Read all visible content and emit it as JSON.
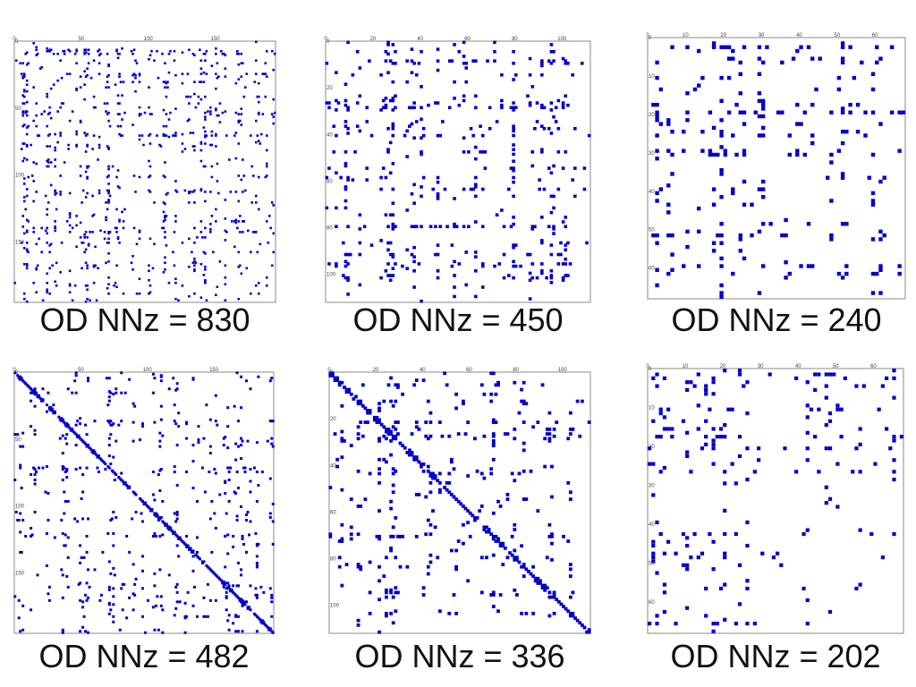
{
  "marker_color": "#0000c8",
  "frame_color": "#888888",
  "chart_data": [
    {
      "type": "scatter",
      "title": "OD NNz = 830",
      "xlim": [
        0,
        195
      ],
      "ylim": [
        0,
        195
      ],
      "x_ticks": [
        "0",
        "50",
        "100",
        "150"
      ],
      "y_ticks": [
        "0",
        "50",
        "100",
        "150"
      ],
      "x_tick_values": [
        0,
        50,
        100,
        150
      ],
      "y_tick_values": [
        0,
        50,
        100,
        150
      ],
      "nnz": 830,
      "diagonal": false,
      "marker_size": 2.6,
      "seed": 11
    },
    {
      "type": "scatter",
      "title": "OD NNz = 450",
      "xlim": [
        0,
        112
      ],
      "ylim": [
        0,
        112
      ],
      "x_ticks": [
        "0",
        "20",
        "40",
        "60",
        "80",
        "100"
      ],
      "y_ticks": [
        "0",
        "20",
        "40",
        "60",
        "80",
        "100"
      ],
      "x_tick_values": [
        0,
        20,
        40,
        60,
        80,
        100
      ],
      "y_tick_values": [
        0,
        20,
        40,
        60,
        80,
        100
      ],
      "nnz": 450,
      "diagonal": false,
      "marker_size": 3.6,
      "seed": 23
    },
    {
      "type": "scatter",
      "title": "OD NNz = 240",
      "xlim": [
        0,
        68
      ],
      "ylim": [
        0,
        68
      ],
      "x_ticks": [
        "0",
        "10",
        "20",
        "30",
        "40",
        "50",
        "60"
      ],
      "y_ticks": [
        "0",
        "10",
        "20",
        "30",
        "40",
        "50",
        "60"
      ],
      "x_tick_values": [
        0,
        10,
        20,
        30,
        40,
        50,
        60
      ],
      "y_tick_values": [
        0,
        10,
        20,
        30,
        40,
        50,
        60
      ],
      "nnz": 240,
      "diagonal": false,
      "marker_size": 4.4,
      "seed": 37
    },
    {
      "type": "scatter",
      "title": "OD NNz = 482",
      "xlim": [
        0,
        195
      ],
      "ylim": [
        0,
        195
      ],
      "x_ticks": [
        "0",
        "50",
        "100",
        "150"
      ],
      "y_ticks": [
        "0",
        "50",
        "100",
        "150"
      ],
      "x_tick_values": [
        0,
        50,
        100,
        150
      ],
      "y_tick_values": [
        0,
        50,
        100,
        150
      ],
      "nnz": 482,
      "diagonal": true,
      "marker_size": 3.0,
      "seed": 41
    },
    {
      "type": "scatter",
      "title": "OD NNz = 336",
      "xlim": [
        0,
        112
      ],
      "ylim": [
        0,
        112
      ],
      "x_ticks": [
        "0",
        "20",
        "40",
        "60",
        "80",
        "100"
      ],
      "y_ticks": [
        "0",
        "20",
        "40",
        "60",
        "80",
        "100"
      ],
      "x_tick_values": [
        0,
        20,
        40,
        60,
        80,
        100
      ],
      "y_tick_values": [
        0,
        20,
        40,
        60,
        80,
        100
      ],
      "nnz": 336,
      "diagonal": true,
      "marker_size": 3.8,
      "seed": 53
    },
    {
      "type": "scatter",
      "title": "OD NNz = 202",
      "xlim": [
        0,
        68
      ],
      "ylim": [
        0,
        68
      ],
      "x_ticks": [
        "0",
        "10",
        "20",
        "30",
        "40",
        "50",
        "60"
      ],
      "y_ticks": [
        "0",
        "10",
        "20",
        "30",
        "40",
        "50",
        "60"
      ],
      "x_tick_values": [
        0,
        10,
        20,
        30,
        40,
        50,
        60
      ],
      "y_tick_values": [
        0,
        10,
        20,
        30,
        40,
        50,
        60
      ],
      "nnz": 202,
      "diagonal": false,
      "marker_size": 4.2,
      "seed": 67
    }
  ]
}
